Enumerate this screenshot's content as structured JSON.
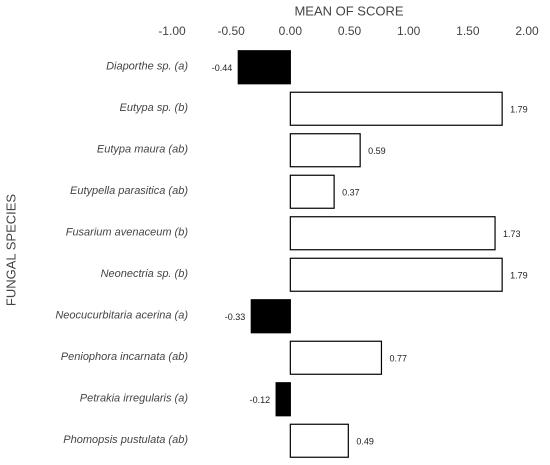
{
  "chart_data": {
    "type": "hbar",
    "title": "MEAN OF SCORE",
    "y_label": "FUNGAL SPECIES",
    "categories": [
      "Diaporthe sp. (a)",
      "Eutypa sp. (b)",
      "Eutypa maura (ab)",
      "Eutypella parasitica (ab)",
      "Fusarium avenaceum (b)",
      "Neonectria sp. (b)",
      "Neocucurbitaria acerina (a)",
      "Peniophora incarnata (ab)",
      "Petrakia irregularis (a)",
      "Phomopsis pustulata (ab)"
    ],
    "values": [
      -0.44,
      1.79,
      0.59,
      0.37,
      1.73,
      1.79,
      -0.33,
      0.77,
      -0.12,
      0.49
    ],
    "xlim": [
      -1,
      2
    ],
    "xticks": [
      {
        "value": -1,
        "label": "-1.00"
      },
      {
        "value": -0.5,
        "label": "-0.50"
      },
      {
        "value": 0,
        "label": "0.00"
      },
      {
        "value": 0.5,
        "label": "0.50"
      },
      {
        "value": 1,
        "label": "1.00"
      },
      {
        "value": 1.5,
        "label": "1.50"
      },
      {
        "value": 2,
        "label": "2.00"
      }
    ],
    "positive_color": "#ffffff",
    "negative_color": "#000000",
    "edge_color": "#000000"
  }
}
